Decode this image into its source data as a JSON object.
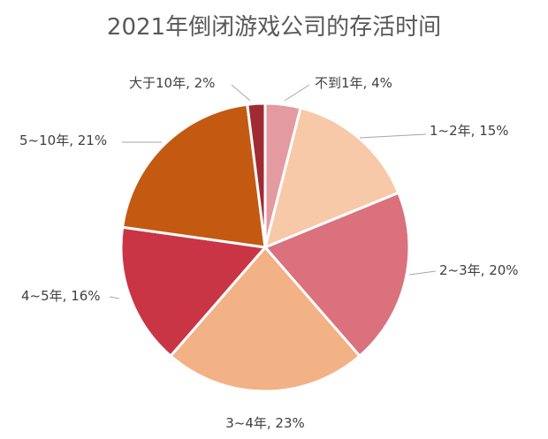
{
  "chart_data": {
    "type": "pie",
    "title": "2021年倒闭游戏公司的存活时间",
    "slices": [
      {
        "name": "不到1年",
        "value": 4,
        "color": "#E49AA1",
        "label": "不到1年, 4%"
      },
      {
        "name": "1~2年",
        "value": 15,
        "color": "#F7C9A8",
        "label": "1~2年, 15%"
      },
      {
        "name": "2~3年",
        "value": 20,
        "color": "#DA717D",
        "label": "2~3年, 20%"
      },
      {
        "name": "3~4年",
        "value": 23,
        "color": "#F3B186",
        "label": "3~4年, 23%"
      },
      {
        "name": "4~5年",
        "value": 16,
        "color": "#C93545",
        "label": "4~5年, 16%"
      },
      {
        "name": "5~10年",
        "value": 21,
        "color": "#C45911",
        "label": "5~10年, 21%"
      },
      {
        "name": "大于10年",
        "value": 2,
        "color": "#A02B33",
        "label": "大于10年, 2%"
      }
    ]
  }
}
